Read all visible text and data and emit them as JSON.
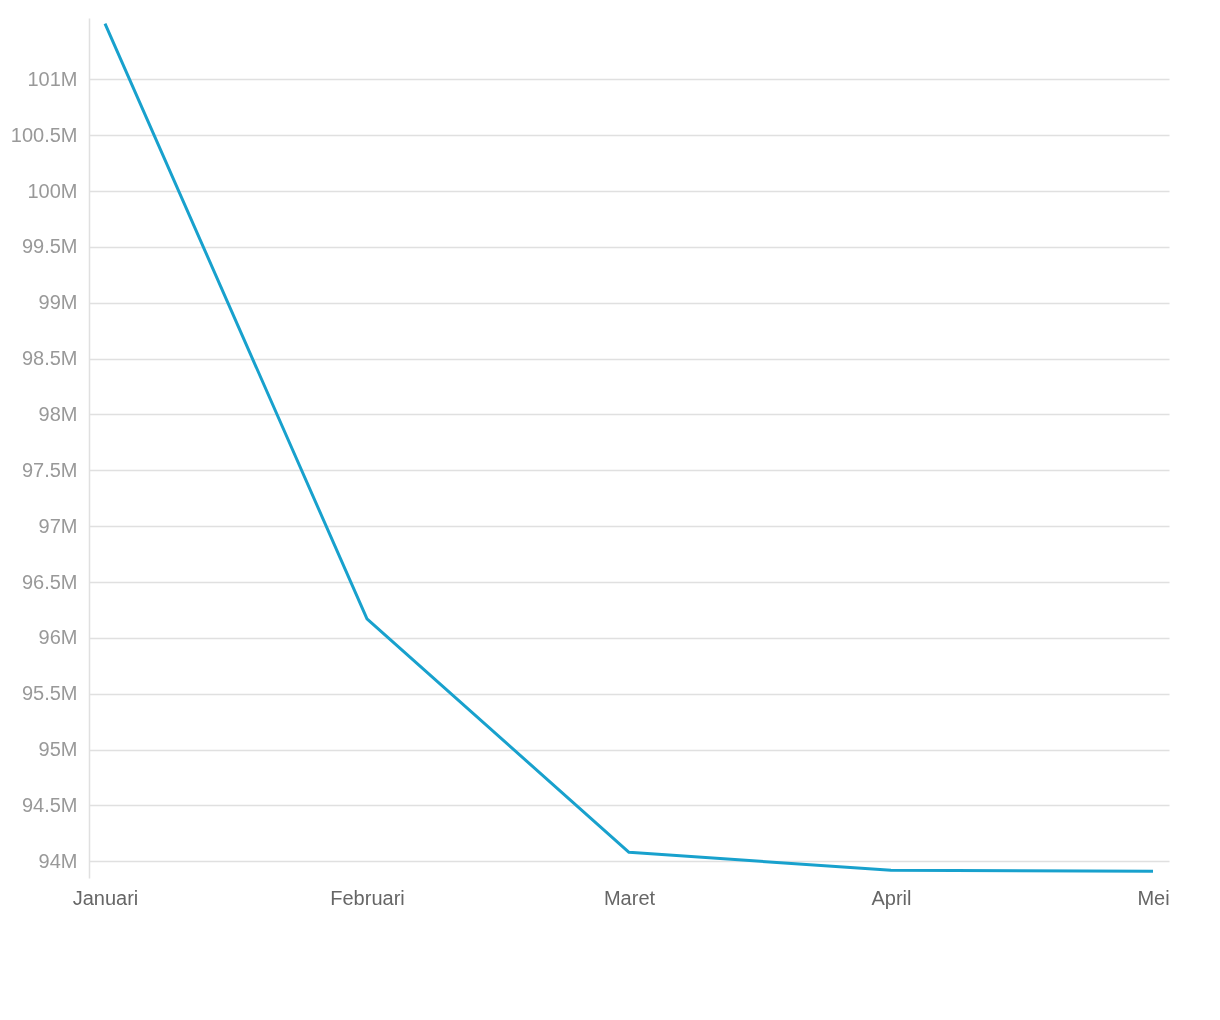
{
  "chart_data": {
    "type": "line",
    "categories": [
      "Januari",
      "Februari",
      "Maret",
      "April",
      "Mei"
    ],
    "series": [
      {
        "color": "#18a1cd",
        "values": [
          101500000,
          96170000,
          94080000,
          93920000,
          93910000
        ]
      }
    ],
    "yticks": [
      {
        "value": 94000000,
        "label": "94M"
      },
      {
        "value": 94500000,
        "label": "94.5M"
      },
      {
        "value": 95000000,
        "label": "95M"
      },
      {
        "value": 95500000,
        "label": "95.5M"
      },
      {
        "value": 96000000,
        "label": "96M"
      },
      {
        "value": 96500000,
        "label": "96.5M"
      },
      {
        "value": 97000000,
        "label": "97M"
      },
      {
        "value": 97500000,
        "label": "97.5M"
      },
      {
        "value": 98000000,
        "label": "98M"
      },
      {
        "value": 98500000,
        "label": "98.5M"
      },
      {
        "value": 99000000,
        "label": "99M"
      },
      {
        "value": 99500000,
        "label": "99.5M"
      },
      {
        "value": 100000000,
        "label": "100M"
      },
      {
        "value": 100500000,
        "label": "100.5M"
      },
      {
        "value": 101000000,
        "label": "101M"
      }
    ],
    "ylim": [
      93850000,
      101550000
    ],
    "grid": "y",
    "marker": "none",
    "line_style": "solid"
  }
}
